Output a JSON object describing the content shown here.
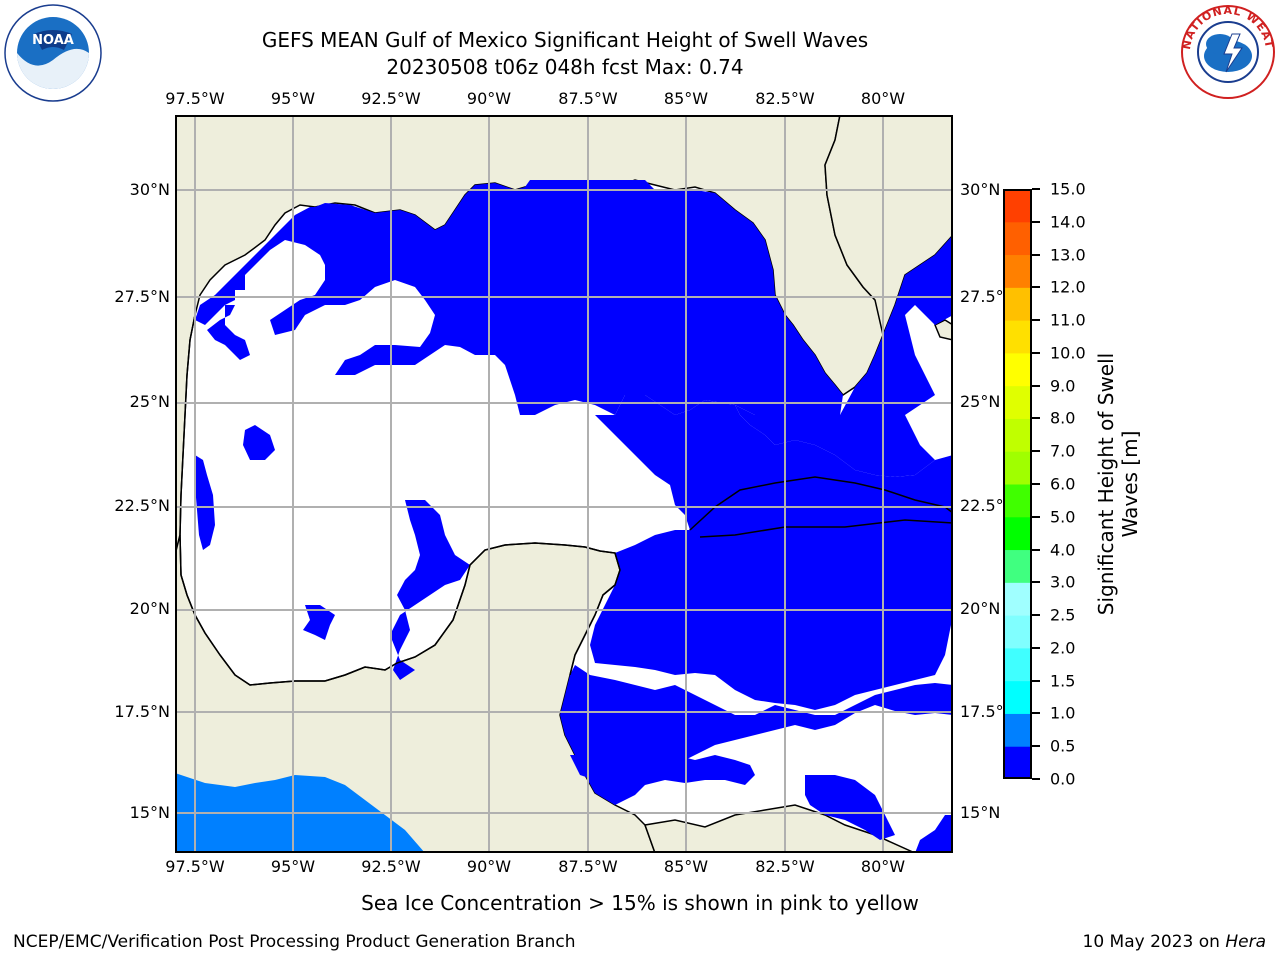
{
  "title": {
    "line1": "GEFS MEAN Gulf of Mexico Significant Height of Swell Waves",
    "line2": "20230508 t06z 048h fcst   Max: 0.74"
  },
  "logos": {
    "left": {
      "name": "noaa-logo",
      "text": "NOAA"
    },
    "right": {
      "name": "nws-logo",
      "text": "NATIONAL WEATHER SERVICE"
    }
  },
  "axes": {
    "lon_labels": [
      "97.5°W",
      "95°W",
      "92.5°W",
      "90°W",
      "87.5°W",
      "85°W",
      "82.5°W",
      "80°W"
    ],
    "lat_labels_left": [
      "30°N",
      "27.5°N",
      "25°N",
      "22.5°N",
      "20°N",
      "17.5°N",
      "15°N"
    ],
    "lat_labels_right": [
      "30°N",
      "27.5°N",
      "25°N",
      "22.5°N",
      "20°N",
      "17.5°N",
      "15°N"
    ]
  },
  "colorbar": {
    "label": "Significant Height of Swell Waves [m]",
    "ticks": [
      "0.0",
      "0.5",
      "1.0",
      "1.5",
      "2.0",
      "2.5",
      "3.0",
      "4.0",
      "5.0",
      "6.0",
      "7.0",
      "8.0",
      "9.0",
      "10.0",
      "11.0",
      "12.0",
      "13.0",
      "14.0",
      "15.0"
    ],
    "colors": [
      "#0000ff",
      "#0080ff",
      "#00ffff",
      "#40ffff",
      "#80ffff",
      "#a0ffff",
      "#40ff80",
      "#00ff00",
      "#40ff00",
      "#a0ff00",
      "#c0ff00",
      "#e0ff00",
      "#ffff00",
      "#ffe000",
      "#ffc000",
      "#ff8000",
      "#ff6000",
      "#ff4000",
      "#ff0000"
    ]
  },
  "map_colors": {
    "land": "#eeeedc",
    "water_no_data": "#ffffff",
    "swell_0_0p5": "#0000ff",
    "swell_0p5_1": "#0080ff",
    "grid": "#b0b0b0"
  },
  "note": "Sea Ice Concentration > 15% is shown in pink to yellow",
  "footer": {
    "left": "NCEP/EMC/Verification Post Processing Product Generation Branch",
    "right_date": "10 May 2023 on ",
    "right_host": "Hera"
  }
}
